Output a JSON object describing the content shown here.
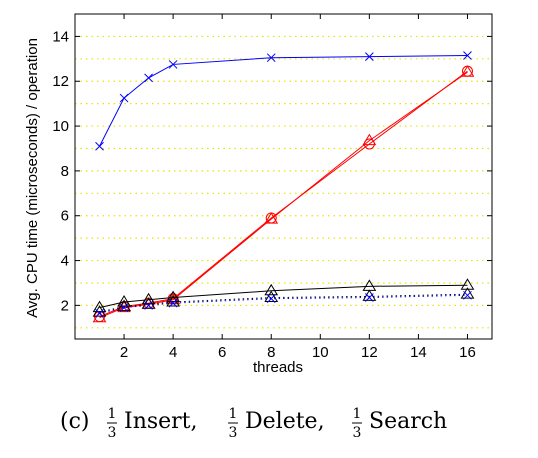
{
  "chart_data": {
    "type": "line",
    "title": "",
    "xlabel": "threads",
    "ylabel": "Avg. CPU time (microseconds) / operation",
    "xlim": [
      0,
      17
    ],
    "ylim": [
      0.5,
      15
    ],
    "xticks": [
      2,
      4,
      6,
      8,
      10,
      12,
      14,
      16
    ],
    "yticks": [
      2,
      4,
      6,
      8,
      10,
      12,
      14
    ],
    "grid": "dotted-horizontal",
    "grid_color": "#e6e600",
    "x": [
      1,
      2,
      3,
      4,
      8,
      12,
      16
    ],
    "series": [
      {
        "name": "blue-x-top",
        "color": "#0000ff",
        "marker": "x",
        "style": "solid",
        "values": [
          9.1,
          11.25,
          12.15,
          12.75,
          13.05,
          13.1,
          13.15
        ]
      },
      {
        "name": "red-circle",
        "color": "#ff0000",
        "marker": "circle",
        "style": "solid",
        "values": [
          1.5,
          1.95,
          2.1,
          2.3,
          5.9,
          9.2,
          12.45
        ]
      },
      {
        "name": "red-triangle",
        "color": "#ff0000",
        "marker": "triangle",
        "style": "solid",
        "values": [
          1.45,
          1.9,
          2.05,
          2.25,
          5.85,
          9.35,
          12.4
        ]
      },
      {
        "name": "black-triangle",
        "color": "#000000",
        "marker": "triangle",
        "style": "solid",
        "values": [
          1.9,
          2.15,
          2.25,
          2.35,
          2.65,
          2.85,
          2.9
        ]
      },
      {
        "name": "black-triangle-dotted",
        "color": "#000000",
        "marker": "triangle",
        "style": "dotted",
        "values": [
          1.7,
          1.95,
          2.05,
          2.15,
          2.35,
          2.4,
          2.5
        ]
      },
      {
        "name": "blue-x-bottom",
        "color": "#0000ff",
        "marker": "x",
        "style": "dotted",
        "values": [
          1.65,
          1.9,
          2.0,
          2.1,
          2.3,
          2.35,
          2.45
        ]
      }
    ]
  },
  "caption": {
    "label": "(c)",
    "frac_num": "1",
    "frac_den": "3",
    "part1": "Insert,",
    "part2": "Delete,",
    "part3": "Search"
  }
}
